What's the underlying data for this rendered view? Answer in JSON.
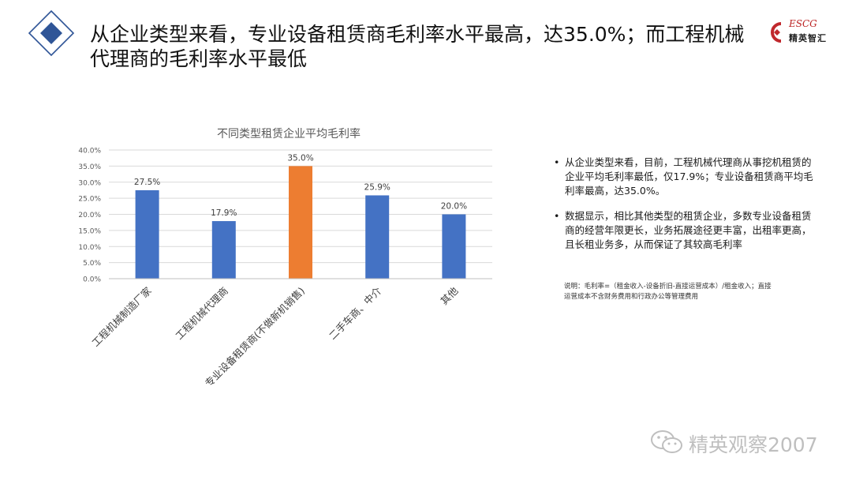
{
  "header": {
    "title": "从企业类型来看，专业设备租赁商毛利率水平最高，达35.0%；而工程机械代理商的毛利率水平最低"
  },
  "logo": {
    "top_text": "ESCG",
    "bottom_text": "精英智汇"
  },
  "chart_data": {
    "type": "bar",
    "title": "不同类型租赁企业平均毛利率",
    "categories": [
      "工程机械制造厂家",
      "工程机械代理商",
      "专业设备租赁商(不做新机销售)",
      "二手车商、中介",
      "其他"
    ],
    "values": [
      27.5,
      17.9,
      35.0,
      25.9,
      20.0
    ],
    "data_labels": [
      "27.5%",
      "17.9%",
      "35.0%",
      "25.9%",
      "20.0%"
    ],
    "colors": [
      "#4472C4",
      "#4472C4",
      "#ED7D31",
      "#4472C4",
      "#4472C4"
    ],
    "ylim": [
      0,
      40
    ],
    "yticks": [
      "0.0%",
      "5.0%",
      "10.0%",
      "15.0%",
      "20.0%",
      "25.0%",
      "30.0%",
      "35.0%",
      "40.0%"
    ],
    "grid": true,
    "legend": "none",
    "xlabel": "",
    "ylabel": ""
  },
  "bullets": [
    "从企业类型来看，目前，工程机械代理商从事挖机租赁的企业平均毛利率最低，仅17.9%；专业设备租赁商平均毛利率最高，达35.0%。",
    "数据显示，相比其他类型的租赁企业，多数专业设备租赁商的经营年限更长，业务拓展途径更丰富，出租率更高，且长租业务多，从而保证了其较高毛利率"
  ],
  "bullet_marker": "•",
  "note": "说明：毛利率=（租金收入-设备折旧-直接运营成本）/租金收入；直接运营成本不含财务费用和行政办公等管理费用",
  "watermark": "精英观察2007"
}
